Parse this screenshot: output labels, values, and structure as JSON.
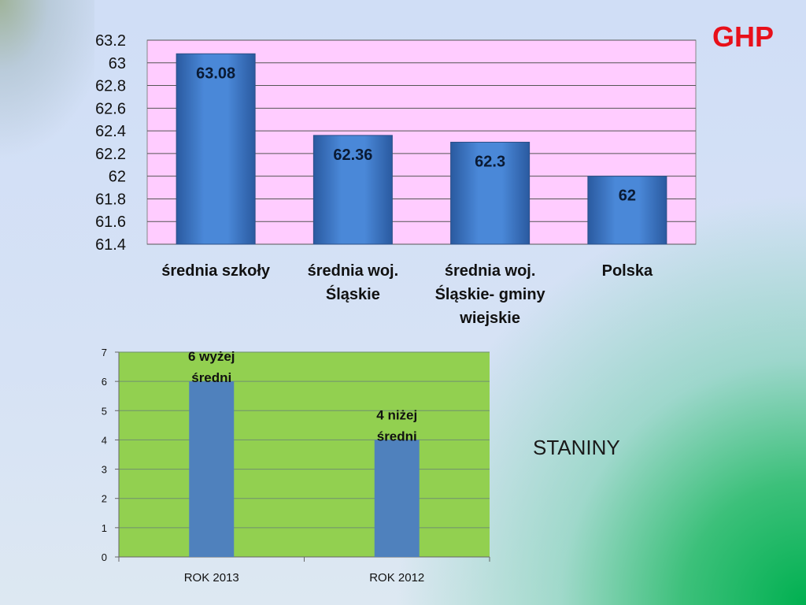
{
  "brand": {
    "label": "GHP",
    "color": "#e8101a"
  },
  "side_label": "STANINY",
  "chart_data": [
    {
      "type": "bar",
      "title": "",
      "xlabel": "",
      "ylabel": "",
      "categories": [
        "średnia szkoły",
        "średnia woj. Śląskie",
        "średnia woj. Śląskie- gminy wiejskie",
        "Polska"
      ],
      "category_lines": [
        [
          "średnia szkoły"
        ],
        [
          "średnia woj.",
          "Śląskie"
        ],
        [
          "średnia woj.",
          "Śląskie- gminy",
          "wiejskie"
        ],
        [
          "Polska"
        ]
      ],
      "values": [
        63.08,
        62.36,
        62.3,
        62
      ],
      "data_labels": [
        "63.08",
        "62.36",
        "62.3",
        "62"
      ],
      "ylim": [
        61.4,
        63.2
      ],
      "yticks": [
        63.2,
        63,
        62.8,
        62.6,
        62.4,
        62.2,
        62,
        61.8,
        61.6,
        61.4
      ],
      "ytick_labels": [
        "63.2",
        "63",
        "62.8",
        "62.6",
        "62.4",
        "62.2",
        "62",
        "61.8",
        "61.6",
        "61.4"
      ],
      "grid": true,
      "legend": "none",
      "colors": {
        "plot_bg": "#ffccff",
        "bar": "#3a74c4",
        "grid": "#555555"
      }
    },
    {
      "type": "bar",
      "title": "",
      "xlabel": "",
      "ylabel": "",
      "categories": [
        "ROK 2013",
        "ROK 2012"
      ],
      "values": [
        6,
        4
      ],
      "data_labels": [
        [
          "6 wyżej",
          "średni"
        ],
        [
          "4 niżej",
          "średni"
        ]
      ],
      "ylim": [
        0,
        7
      ],
      "yticks": [
        7,
        6,
        5,
        4,
        3,
        2,
        1,
        0
      ],
      "ytick_labels": [
        "7",
        "6",
        "5",
        "4",
        "3",
        "2",
        "1",
        "0"
      ],
      "grid": true,
      "legend": "none",
      "colors": {
        "plot_bg": "#92d050",
        "bar": "#4f81bd",
        "grid": "#6f8f6f"
      }
    }
  ]
}
